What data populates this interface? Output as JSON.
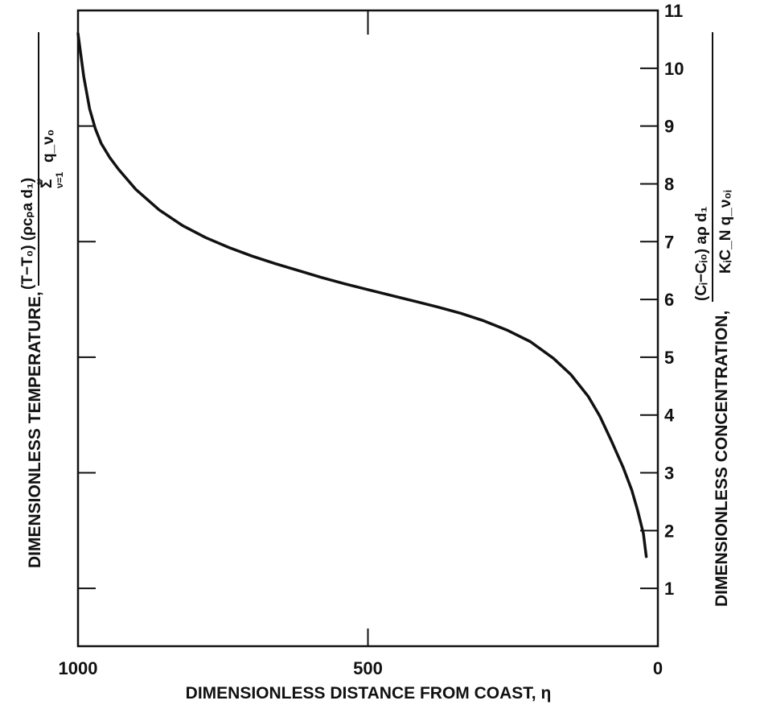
{
  "chart_data": {
    "type": "line",
    "title": "",
    "xlabel": "DIMENSIONLESS DISTANCE FROM COAST, η",
    "xlim": [
      1000,
      0
    ],
    "x_ticks": [
      "1000",
      "500",
      "0"
    ],
    "y_left_label": "DIMENSIONLESS TEMPERATURE,",
    "y_left_formula": {
      "numerator": "(T−T₀) (ρcₚa d₁)",
      "denominator_sum": "Σ",
      "sum_upper": "∞",
      "sum_lower": "ν=1",
      "denominator_term": "q_ν₀"
    },
    "y_right_label": "DIMENSIONLESS CONCENTRATION,",
    "y_right_formula": {
      "numerator": "(Cᵢ−Cᵢ₀) aρ d₁",
      "denominator": "KᵢC_N q_ν₀ᵢ"
    },
    "ylim": [
      0,
      11
    ],
    "y_ticks": [
      "1",
      "2",
      "3",
      "4",
      "5",
      "6",
      "7",
      "8",
      "9",
      "10",
      "11"
    ],
    "grid": false,
    "series": [
      {
        "x": [
          1000,
          990,
          980,
          970,
          960,
          945,
          930,
          900,
          860,
          820,
          780,
          740,
          700,
          660,
          620,
          580,
          540,
          500,
          460,
          420,
          380,
          340,
          300,
          260,
          220,
          180,
          150,
          120,
          100,
          80,
          60,
          45,
          35,
          25,
          20
        ],
        "y": [
          10.6,
          9.85,
          9.3,
          8.95,
          8.7,
          8.45,
          8.25,
          7.9,
          7.55,
          7.28,
          7.07,
          6.9,
          6.75,
          6.62,
          6.5,
          6.38,
          6.27,
          6.17,
          6.07,
          5.97,
          5.87,
          5.76,
          5.63,
          5.47,
          5.27,
          4.98,
          4.7,
          4.32,
          3.98,
          3.55,
          3.1,
          2.7,
          2.35,
          1.95,
          1.55
        ]
      }
    ]
  }
}
